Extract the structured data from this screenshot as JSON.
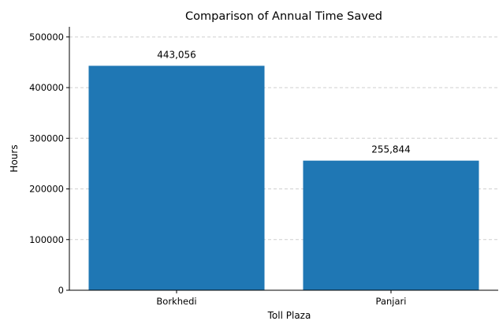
{
  "chart_data": {
    "type": "bar",
    "title": "Comparison of Annual Time Saved",
    "xlabel": "Toll Plaza",
    "ylabel": "Hours",
    "categories": [
      "Borkhedi",
      "Panjari"
    ],
    "values": [
      443056,
      255844
    ],
    "data_labels": [
      "443,056",
      "255,844"
    ],
    "ylim": [
      0,
      520000
    ],
    "yticks": [
      0,
      100000,
      200000,
      300000,
      400000,
      500000
    ],
    "ytick_labels": [
      "0",
      "100000",
      "200000",
      "300000",
      "400000",
      "500000"
    ],
    "grid": "y-dashed",
    "bar_color": "#1f77b4"
  }
}
